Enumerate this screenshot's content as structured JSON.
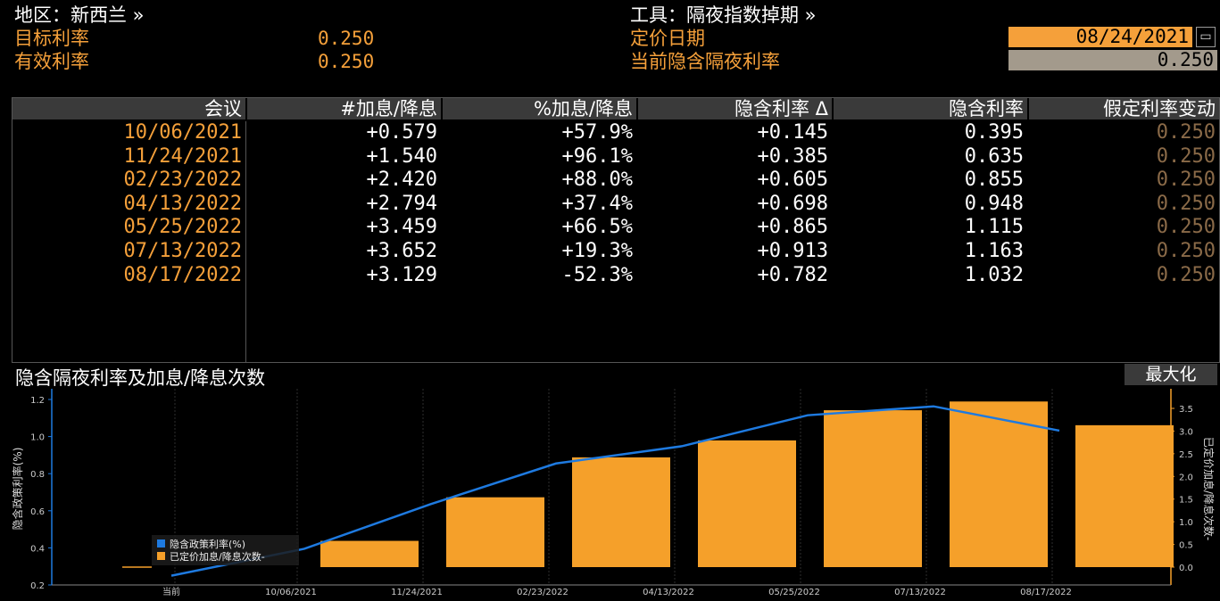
{
  "header": {
    "region_label": "地区：新西兰 »",
    "target_rate_label": "目标利率",
    "target_rate_value": "0.250",
    "effective_rate_label": "有效利率",
    "effective_rate_value": "0.250",
    "instrument_label": "工具：隔夜指数掉期 »",
    "pricing_date_label": "定价日期",
    "pricing_date_value": "08/24/2021",
    "implied_rate_label": "当前隐含隔夜利率",
    "implied_rate_value": "0.250"
  },
  "table": {
    "columns": [
      "会议",
      "#加息/降息",
      "%加息/降息",
      "隐含利率 Δ",
      "隐含利率",
      "假定利率变动"
    ],
    "rows": [
      [
        "10/06/2021",
        "+0.579",
        "+57.9%",
        "+0.145",
        "0.395",
        "0.250"
      ],
      [
        "11/24/2021",
        "+1.540",
        "+96.1%",
        "+0.385",
        "0.635",
        "0.250"
      ],
      [
        "02/23/2022",
        "+2.420",
        "+88.0%",
        "+0.605",
        "0.855",
        "0.250"
      ],
      [
        "04/13/2022",
        "+2.794",
        "+37.4%",
        "+0.698",
        "0.948",
        "0.250"
      ],
      [
        "05/25/2022",
        "+3.459",
        "+66.5%",
        "+0.865",
        "1.115",
        "0.250"
      ],
      [
        "07/13/2022",
        "+3.652",
        "+19.3%",
        "+0.913",
        "1.163",
        "0.250"
      ],
      [
        "08/17/2022",
        "+3.129",
        "-52.3%",
        "+0.782",
        "1.032",
        "0.250"
      ]
    ]
  },
  "chart_section": {
    "title": "隐含隔夜利率及加息/降息次数",
    "maximize_label": "最大化"
  },
  "chart_data": {
    "type": "bar",
    "categories": [
      "当前",
      "10/06/2021",
      "11/24/2021",
      "02/23/2022",
      "04/13/2022",
      "05/25/2022",
      "07/13/2022",
      "08/17/2022"
    ],
    "series": [
      {
        "name": "隐含政策利率(%)",
        "type": "line",
        "axis": "left",
        "color": "#1e7ae0",
        "values": [
          0.25,
          0.395,
          0.635,
          0.855,
          0.948,
          1.115,
          1.163,
          1.032
        ]
      },
      {
        "name": "已定价加息/降息次数-",
        "type": "bar",
        "axis": "right",
        "color": "#f5a02a",
        "values": [
          0,
          0.579,
          1.54,
          2.42,
          2.794,
          3.459,
          3.652,
          3.129
        ]
      }
    ],
    "ylabel": "隐含政策利率(%)",
    "ylabel_right": "已定价加息/降息次数-",
    "ylim": [
      0.2,
      1.2
    ],
    "ylim_right": [
      0.0,
      3.5
    ],
    "yticks": [
      "1.2",
      "1.0",
      "0.8",
      "0.6",
      "0.4",
      "0.2"
    ],
    "yticks_right": [
      "3.5",
      "3.0",
      "2.5",
      "2.0",
      "1.5",
      "1.0",
      "0.5",
      "0.0"
    ],
    "legend_position": "bottom-left",
    "grid": true
  }
}
